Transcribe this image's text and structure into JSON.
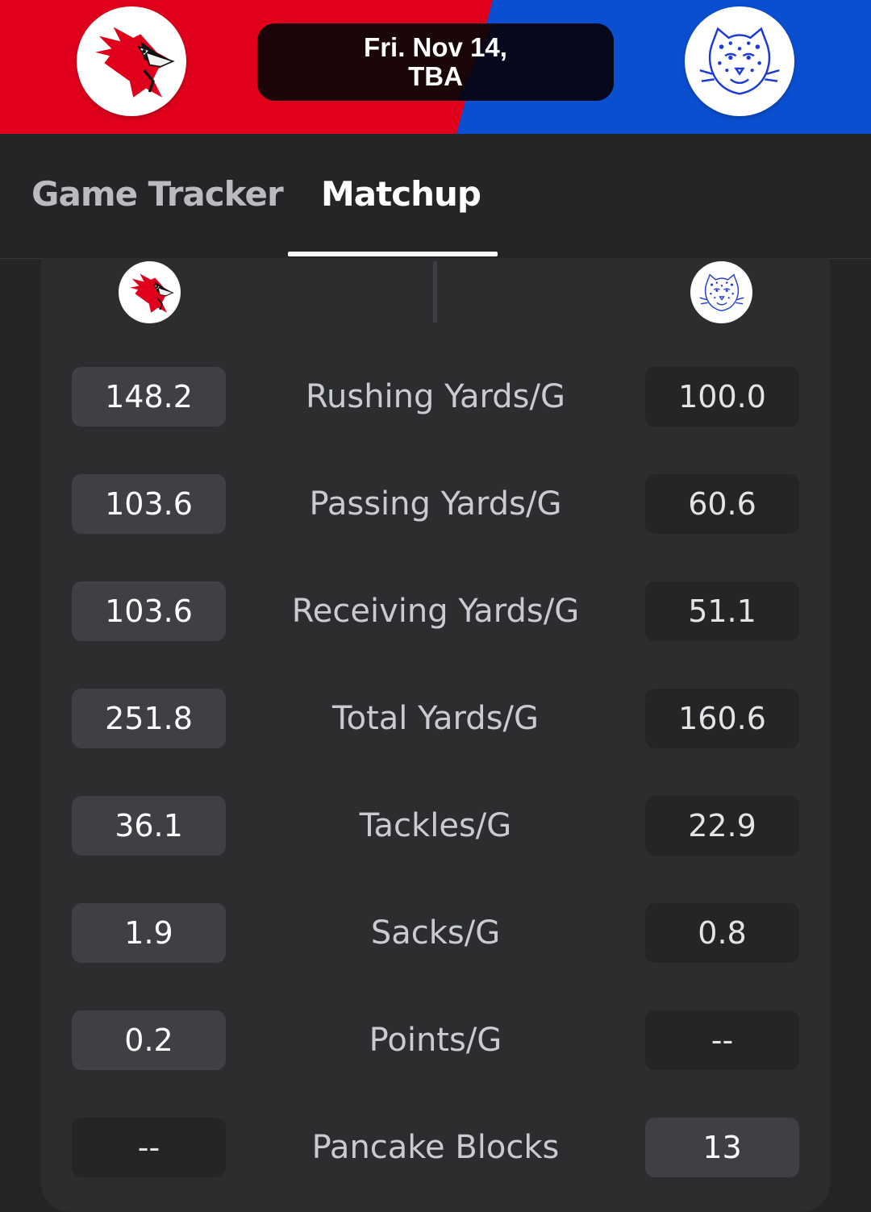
{
  "header": {
    "date_line": "Fri. Nov 14,",
    "time_line": "TBA",
    "home_color": "#e0001b",
    "away_color": "#0b4fd1",
    "home_logo": "cardinal-icon",
    "away_logo": "leopard-icon"
  },
  "tabs": [
    {
      "label": "Game Tracker",
      "active": false
    },
    {
      "label": "Matchup",
      "active": true
    }
  ],
  "stats": [
    {
      "label": "Rushing Yards/G",
      "home": "148.2",
      "away": "100.0"
    },
    {
      "label": "Passing Yards/G",
      "home": "103.6",
      "away": "60.6"
    },
    {
      "label": "Receiving Yards/G",
      "home": "103.6",
      "away": "51.1"
    },
    {
      "label": "Total Yards/G",
      "home": "251.8",
      "away": "160.6"
    },
    {
      "label": "Tackles/G",
      "home": "36.1",
      "away": "22.9"
    },
    {
      "label": "Sacks/G",
      "home": "1.9",
      "away": "0.8"
    },
    {
      "label": "Points/G",
      "home": "0.2",
      "away": "--"
    },
    {
      "label": "Pancake Blocks",
      "home": "--",
      "away": "13"
    }
  ]
}
